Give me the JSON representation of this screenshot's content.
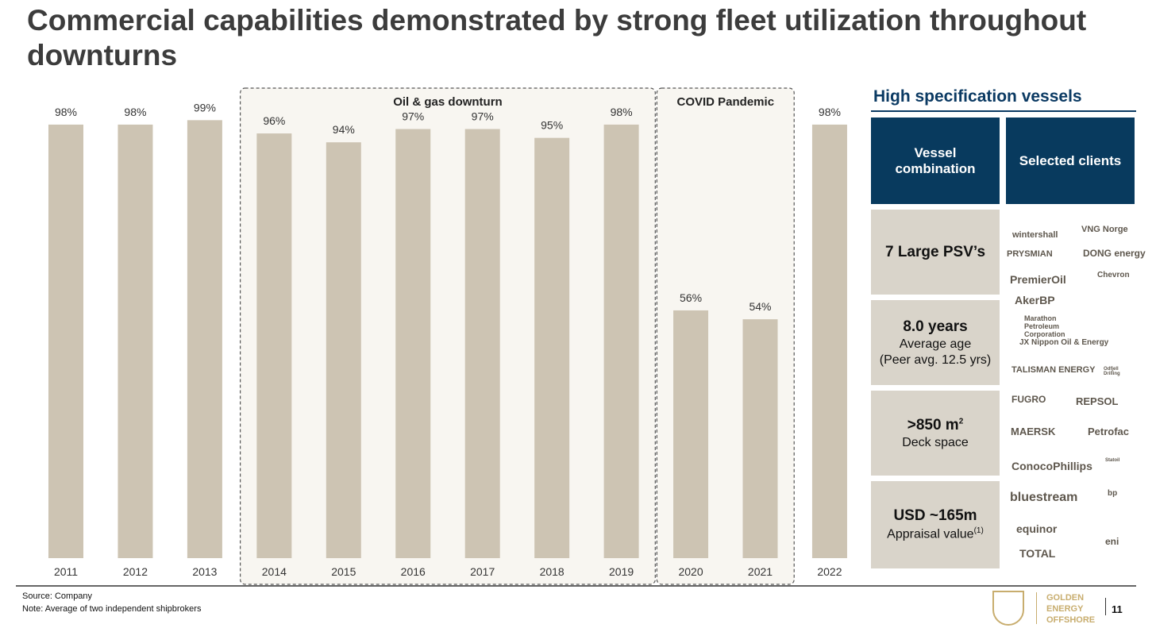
{
  "chart_data": {
    "type": "bar",
    "title": "Commercial capabilities demonstrated by strong fleet utilization throughout downturns",
    "categories": [
      "2011",
      "2012",
      "2013",
      "2014",
      "2015",
      "2016",
      "2017",
      "2018",
      "2019",
      "2020",
      "2021",
      "2022"
    ],
    "values": [
      98,
      98,
      99,
      96,
      94,
      97,
      97,
      95,
      98,
      56,
      54,
      98
    ],
    "value_labels": [
      "98%",
      "98%",
      "99%",
      "96%",
      "94%",
      "97%",
      "97%",
      "95%",
      "98%",
      "56%",
      "54%",
      "98%"
    ],
    "color": "#cdc4b3",
    "annotations": [
      "Oil & gas downturn",
      "COVID Pandemic"
    ]
  },
  "panel": {
    "heading": "High specification vessels",
    "headers": [
      "Vessel combination",
      "Selected clients"
    ],
    "rows": [
      {
        "main": "7 Large PSV’s"
      },
      {
        "main": "8.0 years",
        "sub": "Average age",
        "sub2": "(Peer avg. 12.5 yrs)"
      },
      {
        "main": ">850 m",
        "main_sup": "2",
        "sub": "Deck space"
      },
      {
        "main": "USD ~165m",
        "sub": "Appraisal value",
        "sub_sup": "(1)"
      }
    ],
    "clients": [
      "wintershall",
      "VNG Norge",
      "PRYSMIAN",
      "DONG energy",
      "PremierOil",
      "Chevron",
      "AkerBP",
      "Marathon Petroleum Corporation",
      "JX Nippon Oil & Energy",
      "TALISMAN ENERGY",
      "Odfjell Drilling",
      "FUGRO",
      "REPSOL",
      "MAERSK",
      "Petrofac",
      "ConocoPhillips",
      "Statoil",
      "bluestream",
      "bp",
      "equinor",
      "eni",
      "TOTAL"
    ]
  },
  "footer": {
    "source": "Source: Company",
    "note": "Note: Average of two independent shipbrokers",
    "company": "GOLDEN ENERGY OFFSHORE",
    "page": "11"
  }
}
